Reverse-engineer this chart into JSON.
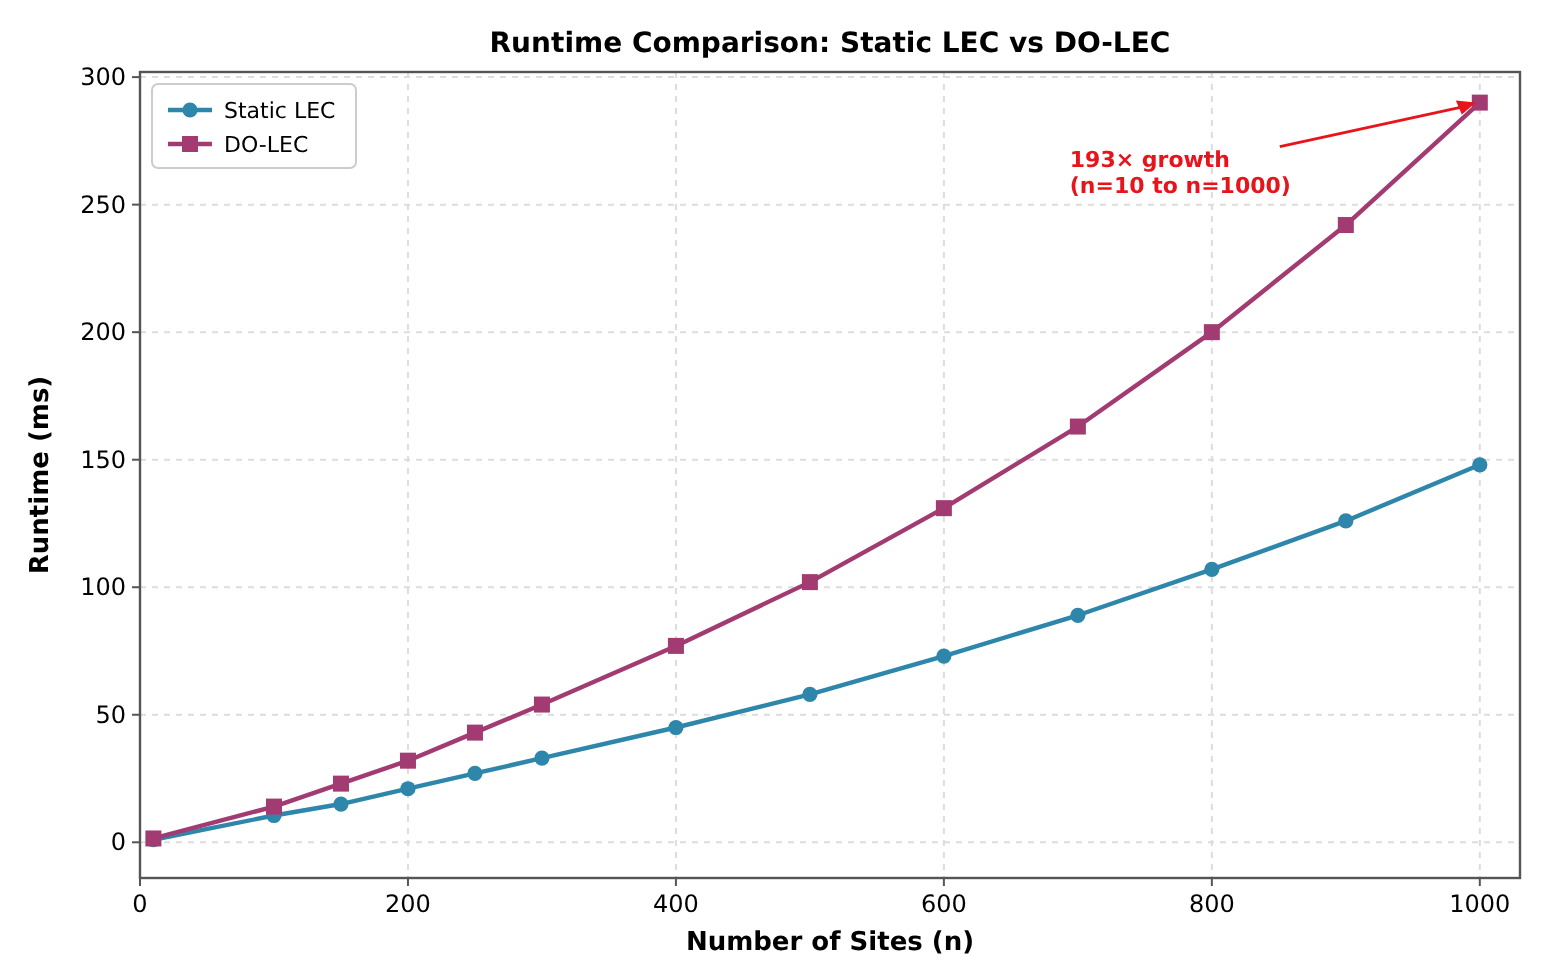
{
  "chart_data": {
    "type": "line",
    "title": "Runtime Comparison: Static LEC vs DO-LEC",
    "xlabel": "Number of Sites (n)",
    "ylabel": "Runtime (ms)",
    "x": [
      10,
      100,
      150,
      200,
      250,
      300,
      400,
      500,
      600,
      700,
      800,
      900,
      1000
    ],
    "series": [
      {
        "name": "Static LEC",
        "color": "#2e86ab",
        "marker": "circle",
        "values": [
          1,
          10.5,
          15,
          21,
          27,
          33,
          45,
          58,
          73,
          89,
          107,
          126,
          148
        ]
      },
      {
        "name": "DO-LEC",
        "color": "#a23b72",
        "marker": "square",
        "values": [
          1.5,
          14,
          23,
          32,
          43,
          54,
          77,
          102,
          131,
          163,
          200,
          242,
          290
        ]
      }
    ],
    "xlim": [
      0,
      1030
    ],
    "xticks": [
      0,
      200,
      400,
      600,
      800,
      1000
    ],
    "ylim": [
      -14,
      302
    ],
    "yticks": [
      0,
      50,
      100,
      150,
      200,
      250,
      300
    ],
    "grid": true,
    "legend": "top left",
    "line_style": "solid",
    "annotations": [
      {
        "text": "193× growth\n(n=10 to n=1000)",
        "x": 1000,
        "y": 290
      }
    ]
  }
}
